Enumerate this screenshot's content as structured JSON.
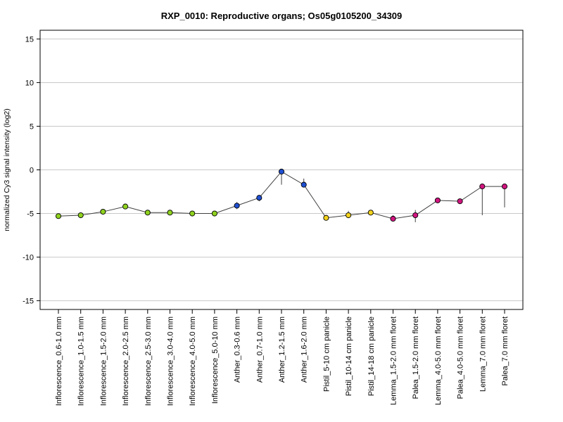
{
  "chart_data": {
    "type": "line",
    "title": "RXP_0010: Reproductive organs; Os05g0105200_34309",
    "ylabel": "normalized Cy3 signal intensity (log2)",
    "xlabel": "",
    "ylim": [
      -16,
      16
    ],
    "yticks": [
      15,
      10,
      5,
      0,
      -5,
      -10,
      -15
    ],
    "ytick_labels": [
      "15",
      "10",
      "5",
      "0",
      "-5",
      "-10",
      "-15"
    ],
    "grid": true,
    "categories": [
      "Inflorescence_0.6-1.0 mm",
      "Inflorescence_1.0-1.5 mm",
      "Inflorescence_1.5-2.0 mm",
      "Inflorescence_2.0-2.5 mm",
      "Inflorescence_2.5-3.0 mm",
      "Inflorescence_3.0-4.0 mm",
      "Inflorescence_4.0-5.0 mm",
      "Inflorescence_5.0-10 mm",
      "Anther_0.3-0.6 mm",
      "Anther_0.7-1.0 mm",
      "Anther_1.2-1.5 mm",
      "Anther_1.6-2.0 mm",
      "Pistil_5-10 cm panicle",
      "Pistil_10-14 cm panicle",
      "Pistil_14-18 cm panicle",
      "Lemma_1.5-2.0 mm floret",
      "Palea_1.5-2.0 mm floret",
      "Lemma_4.0-5.0 mm floret",
      "Palea_4.0-5.0 mm floret",
      "Lemma_7.0 mm floret",
      "Palea_7.0 mm floret"
    ],
    "series": [
      {
        "values": [
          -5.3,
          -5.2,
          -4.8,
          -4.2,
          -4.9,
          -4.9,
          -5.0,
          -5.0,
          -4.1,
          -3.2,
          -0.2,
          -1.7,
          -5.5,
          -5.2,
          -4.9,
          -5.6,
          -5.2,
          -3.5,
          -3.6,
          -1.9,
          -1.9
        ],
        "error_low": [
          -5.3,
          -5.2,
          -4.8,
          -4.2,
          -4.9,
          -4.9,
          -5.0,
          -5.0,
          -4.5,
          -3.6,
          -1.7,
          -1.9,
          -5.6,
          -5.5,
          -5.1,
          -5.8,
          -6.0,
          -3.6,
          -3.7,
          -5.2,
          -4.3
        ],
        "error_high": [
          -5.2,
          -5.1,
          -4.7,
          -4.1,
          -4.8,
          -4.8,
          -4.9,
          -4.9,
          -3.7,
          -2.9,
          -0.2,
          -1.0,
          -5.2,
          -4.7,
          -4.7,
          -5.2,
          -4.6,
          -3.4,
          -3.5,
          -1.8,
          -1.8
        ],
        "colors": [
          "#8fd21f",
          "#8fd21f",
          "#8fd21f",
          "#8fd21f",
          "#8fd21f",
          "#8fd21f",
          "#8fd21f",
          "#8fd21f",
          "#1f4fd1",
          "#1f4fd1",
          "#1f4fd1",
          "#1f4fd1",
          "#f2d21d",
          "#f2d21d",
          "#f2d21d",
          "#d0157f",
          "#d0157f",
          "#d0157f",
          "#d0157f",
          "#d0157f",
          "#d0157f"
        ]
      }
    ]
  }
}
